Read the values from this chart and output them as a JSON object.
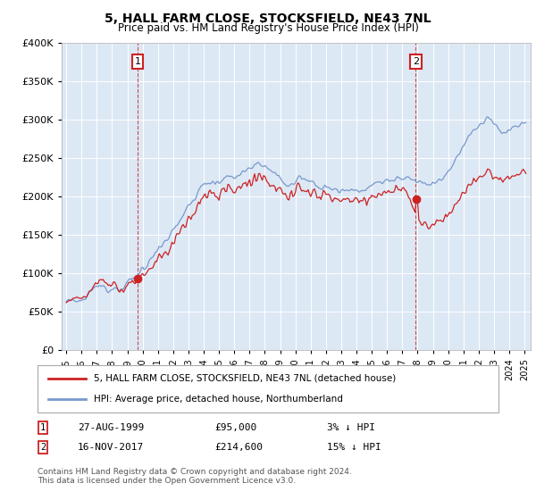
{
  "title": "5, HALL FARM CLOSE, STOCKSFIELD, NE43 7NL",
  "subtitle": "Price paid vs. HM Land Registry's House Price Index (HPI)",
  "legend_line1": "5, HALL FARM CLOSE, STOCKSFIELD, NE43 7NL (detached house)",
  "legend_line2": "HPI: Average price, detached house, Northumberland",
  "footer": "Contains HM Land Registry data © Crown copyright and database right 2024.\nThis data is licensed under the Open Government Licence v3.0.",
  "hpi_color": "#7799cc",
  "price_color": "#cc2222",
  "background_color": "#dde8f5",
  "sale1_year": 1999.67,
  "sale2_year": 2017.88,
  "sale1_value": 95000,
  "sale2_value": 214600,
  "ylim_min": 0,
  "ylim_max": 400000,
  "yticks": [
    0,
    50000,
    100000,
    150000,
    200000,
    250000,
    300000,
    350000,
    400000
  ]
}
